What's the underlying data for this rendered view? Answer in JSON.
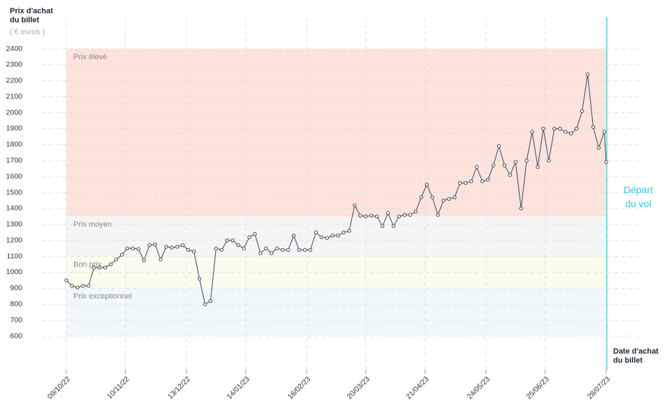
{
  "chart_data": {
    "type": "line",
    "y_title": "Prix d'achat du billet",
    "y_unit": "( € euros )",
    "x_title": "Date d'achat du billet",
    "ylim": [
      600,
      2400
    ],
    "yticks": [
      600,
      700,
      800,
      900,
      1000,
      1100,
      1200,
      1300,
      1400,
      1500,
      1600,
      1700,
      1800,
      1900,
      2000,
      2100,
      2200,
      2300,
      2400
    ],
    "xlim": [
      "09/10/22",
      "28/07/23"
    ],
    "xticks": [
      "09/10/22",
      "10/11/22",
      "13/12/22",
      "14/01/23",
      "16/02/23",
      "20/03/23",
      "21/04/23",
      "24/05/23",
      "25/06/23",
      "28/07/23"
    ],
    "grid": true,
    "bands": [
      {
        "label": "Prix élevé",
        "from": 1350,
        "to": 2400,
        "color": "#fde3dc"
      },
      {
        "label": "Prix moyen",
        "from": 1100,
        "to": 1350,
        "color": "#f5f5f5"
      },
      {
        "label": "Bon prix",
        "from": 900,
        "to": 1100,
        "color": "#fbfbee"
      },
      {
        "label": "Prix exceptionnel",
        "from": 600,
        "to": 900,
        "color": "#f0f8fb"
      }
    ],
    "departure": {
      "label": "Départ du vol",
      "date": "28/07/23",
      "color": "#3cc6e0"
    },
    "series": [
      {
        "color": "#3a4556",
        "x": [
          "09/10/22",
          "12/10/22",
          "15/10/22",
          "18/10/22",
          "21/10/22",
          "24/10/22",
          "27/10/22",
          "30/10/22",
          "02/11/22",
          "05/11/22",
          "08/11/22",
          "11/11/22",
          "14/11/22",
          "17/11/22",
          "20/11/22",
          "23/11/22",
          "26/11/22",
          "29/11/22",
          "02/12/22",
          "05/12/22",
          "08/12/22",
          "11/12/22",
          "14/12/22",
          "17/12/22",
          "20/12/22",
          "23/12/22",
          "26/12/22",
          "29/12/22",
          "01/01/23",
          "04/01/23",
          "07/01/23",
          "10/01/23",
          "13/01/23",
          "16/01/23",
          "19/01/23",
          "22/01/23",
          "25/01/23",
          "28/01/23",
          "31/01/23",
          "03/02/23",
          "06/02/23",
          "09/02/23",
          "12/02/23",
          "15/02/23",
          "18/02/23",
          "21/02/23",
          "24/02/23",
          "27/02/23",
          "02/03/23",
          "05/03/23",
          "08/03/23",
          "11/03/23",
          "14/03/23",
          "17/03/23",
          "20/03/23",
          "23/03/23",
          "26/03/23",
          "29/03/23",
          "01/04/23",
          "04/04/23",
          "07/04/23",
          "10/04/23",
          "13/04/23",
          "16/04/23",
          "19/04/23",
          "22/04/23",
          "25/04/23",
          "28/04/23",
          "01/05/23",
          "04/05/23",
          "07/05/23",
          "10/05/23",
          "13/05/23",
          "16/05/23",
          "19/05/23",
          "22/05/23",
          "25/05/23",
          "28/05/23",
          "31/05/23",
          "03/06/23",
          "06/06/23",
          "09/06/23",
          "12/06/23",
          "15/06/23",
          "18/06/23",
          "21/06/23",
          "24/06/23",
          "27/06/23",
          "30/06/23",
          "03/07/23",
          "06/07/23",
          "09/07/23",
          "12/07/23",
          "15/07/23",
          "18/07/23",
          "21/07/23",
          "24/07/23",
          "27/07/23",
          "28/07/23"
        ],
        "values": [
          950,
          915,
          905,
          915,
          915,
          1030,
          1030,
          1030,
          1050,
          1080,
          1110,
          1150,
          1150,
          1145,
          1075,
          1170,
          1175,
          1080,
          1160,
          1155,
          1160,
          1170,
          1140,
          1130,
          960,
          800,
          820,
          1150,
          1140,
          1200,
          1200,
          1170,
          1150,
          1220,
          1240,
          1120,
          1150,
          1120,
          1150,
          1140,
          1140,
          1230,
          1140,
          1140,
          1140,
          1250,
          1220,
          1215,
          1230,
          1230,
          1250,
          1260,
          1420,
          1355,
          1350,
          1355,
          1350,
          1290,
          1370,
          1290,
          1350,
          1360,
          1360,
          1380,
          1470,
          1550,
          1470,
          1360,
          1450,
          1460,
          1470,
          1560,
          1560,
          1570,
          1660,
          1570,
          1580,
          1670,
          1790,
          1670,
          1610,
          1690,
          1400,
          1700,
          1880,
          1660,
          1900,
          1700,
          1900,
          1900,
          1880,
          1870,
          1900,
          2010,
          2240,
          1910,
          1780,
          1880,
          1690
        ]
      }
    ]
  }
}
